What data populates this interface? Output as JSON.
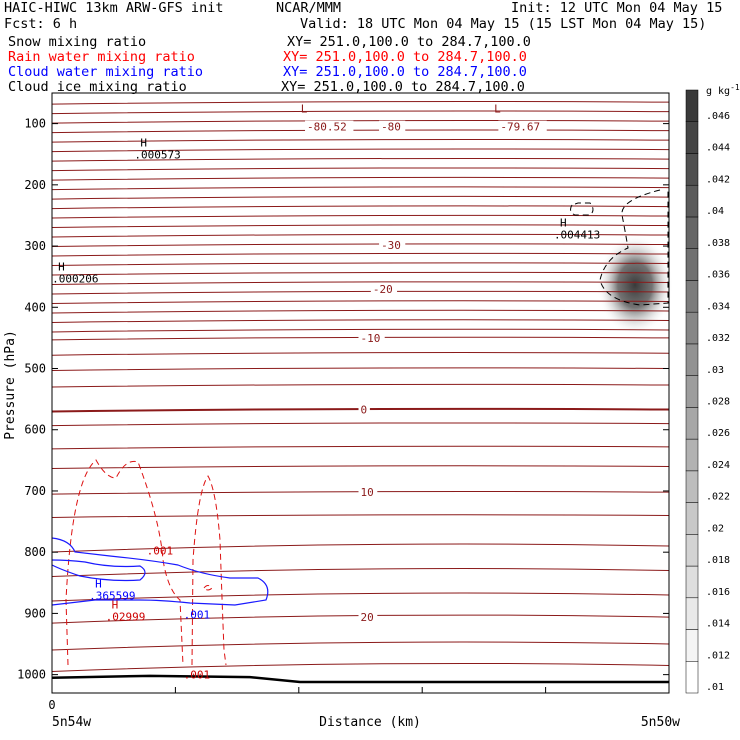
{
  "header": {
    "line1_left": "HAIC-HIWC 13km ARW-GFS init",
    "line1_mid": "NCAR/MMM",
    "line1_right": "Init: 12 UTC Mon 04 May 15",
    "line2_left": "Fcst:   6 h",
    "line2_right": "Valid: 18 UTC Mon 04 May 15 (15 LST Mon 04 May 15)",
    "fields": [
      {
        "name": "Snow mixing ratio",
        "xy": "XY= 251.0,100.0 to 284.7,100.0",
        "color": "#000000"
      },
      {
        "name": "Rain water mixing ratio",
        "xy": "XY= 251.0,100.0 to 284.7,100.0",
        "color": "#ff0000"
      },
      {
        "name": "Cloud water mixing ratio",
        "xy": "XY= 251.0,100.0 to 284.7,100.0",
        "color": "#0000ff"
      },
      {
        "name": "Cloud ice mixing ratio",
        "xy": "XY= 251.0,100.0 to 284.7,100.0",
        "color": "#000000"
      }
    ]
  },
  "chart_data": {
    "type": "contour",
    "xlabel": "Distance (km)",
    "ylabel": "Pressure (hPa)",
    "xlim": [
      0,
      150
    ],
    "ylim": [
      1030,
      50
    ],
    "y_ticks": [
      100,
      200,
      300,
      400,
      500,
      600,
      700,
      800,
      900,
      1000
    ],
    "x_ticks": [
      0,
      30,
      60,
      90,
      120,
      150
    ],
    "x_tick_labels": [
      "0"
    ],
    "x_end_labels": {
      "left": "5n54w",
      "right": "5n50w"
    },
    "temperature_contours": [
      {
        "label": "-80.52",
        "x": 62,
        "p": 105
      },
      {
        "label": "-80",
        "x": 80,
        "p": 105
      },
      {
        "label": "-79.67",
        "x": 109,
        "p": 105
      },
      {
        "label": "-30",
        "x": 80,
        "p": 298
      },
      {
        "label": "-20",
        "x": 78,
        "p": 370
      },
      {
        "label": "-10",
        "x": 75,
        "p": 450
      },
      {
        "label": "0",
        "x": 75,
        "p": 567
      },
      {
        "label": "10",
        "x": 75,
        "p": 702
      },
      {
        "label": "20",
        "x": 75,
        "p": 906
      }
    ],
    "extrema": [
      {
        "type": "L",
        "x": 60,
        "p": 82,
        "color": "#8b1a1a"
      },
      {
        "type": "L",
        "x": 107,
        "p": 82,
        "color": "#8b1a1a"
      },
      {
        "type": "H",
        "x": 21,
        "p": 137,
        "value": ".000573",
        "color": "#000000"
      },
      {
        "type": "H",
        "x": 1,
        "p": 340,
        "value": ".000206",
        "color": "#000000"
      },
      {
        "type": "H",
        "x": 123,
        "p": 268,
        "value": ".004413",
        "color": "#000000"
      },
      {
        "type": "H",
        "x": 10,
        "p": 858,
        "value": ".365599",
        "color": "#0000ff"
      },
      {
        "type": "H",
        "x": 14,
        "p": 892,
        "value": ".02999",
        "color": "#cc0000"
      }
    ],
    "contour_labels": [
      {
        "label": ".001",
        "x": 23,
        "p": 797,
        "color": "#cc0000"
      },
      {
        "label": ".001",
        "x": 32,
        "p": 1000,
        "color": "#cc0000"
      },
      {
        "label": ".001",
        "x": 32,
        "p": 902,
        "color": "#0000ff"
      }
    ],
    "colorbar": {
      "unit_label": "g kg",
      "unit_exponent": "-1",
      "ticks": [
        ".01",
        ".012",
        ".014",
        ".016",
        ".018",
        ".02",
        ".022",
        ".024",
        ".026",
        ".028",
        ".03",
        ".032",
        ".034",
        ".036",
        ".038",
        ".04",
        ".042",
        ".044",
        ".046"
      ],
      "min_color": "#ffffff",
      "max_color": "#3a3a3a"
    }
  }
}
